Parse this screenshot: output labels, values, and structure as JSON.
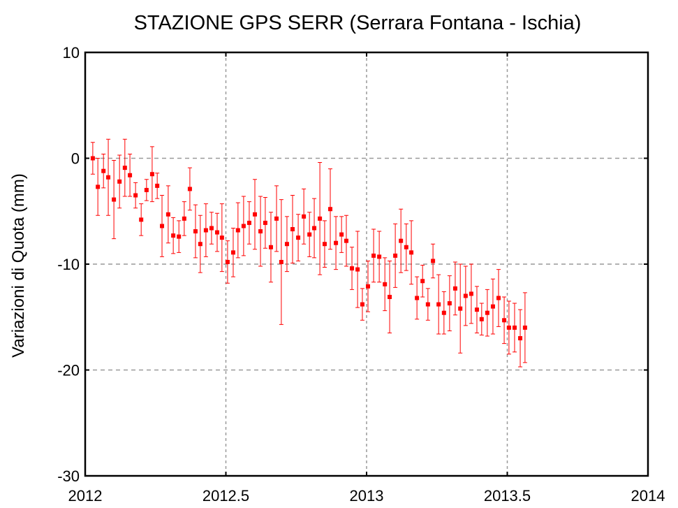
{
  "chart_data": {
    "type": "errorbar",
    "title": "STAZIONE GPS SERR (Serrara Fontana - Ischia)",
    "y_label": "Variazioni di Quota (mm)",
    "xlim": [
      2012,
      2014
    ],
    "xticks": [
      2012,
      2012.5,
      2013,
      2013.5,
      2014
    ],
    "ylim": [
      -30,
      10
    ],
    "yticks": [
      -30,
      -20,
      -10,
      0,
      10
    ],
    "grid": true,
    "series": [
      {
        "color": "#ff0000",
        "x": [
          2012.027,
          2012.045,
          2012.065,
          2012.082,
          2012.102,
          2012.122,
          2012.141,
          2012.159,
          2012.179,
          2012.199,
          2012.218,
          2012.238,
          2012.256,
          2012.273,
          2012.295,
          2012.313,
          2012.333,
          2012.352,
          2012.372,
          2012.392,
          2012.409,
          2012.429,
          2012.449,
          2012.469,
          2012.486,
          2012.506,
          2012.526,
          2012.543,
          2012.563,
          2012.583,
          2012.603,
          2012.623,
          2012.64,
          2012.66,
          2012.68,
          2012.697,
          2012.717,
          2012.737,
          2012.757,
          2012.777,
          2012.797,
          2012.814,
          2012.834,
          2012.851,
          2012.871,
          2012.891,
          2012.911,
          2012.928,
          2012.948,
          2012.968,
          2012.985,
          2013.005,
          2013.025,
          2013.045,
          2013.065,
          2013.082,
          2013.102,
          2013.122,
          2013.141,
          2013.159,
          2013.179,
          2013.199,
          2013.218,
          2013.236,
          2013.256,
          2013.275,
          2013.295,
          2013.315,
          2013.333,
          2013.352,
          2013.372,
          2013.392,
          2013.409,
          2013.429,
          2013.449,
          2013.469,
          2013.489,
          2013.506,
          2013.526,
          2013.546,
          2013.563
        ],
        "values": [
          0.0,
          -2.7,
          -1.2,
          -1.8,
          -3.9,
          -2.2,
          -0.9,
          -1.6,
          -3.5,
          -5.8,
          -3.0,
          -1.5,
          -2.6,
          -6.4,
          -5.3,
          -7.3,
          -7.4,
          -5.7,
          -2.9,
          -6.9,
          -8.1,
          -6.8,
          -6.6,
          -7.0,
          -7.5,
          -9.8,
          -8.9,
          -6.8,
          -6.4,
          -6.1,
          -5.3,
          -6.9,
          -6.1,
          -8.4,
          -5.7,
          -9.8,
          -8.1,
          -6.7,
          -7.5,
          -5.5,
          -7.2,
          -6.6,
          -5.7,
          -8.1,
          -4.8,
          -8.0,
          -7.2,
          -7.8,
          -10.4,
          -10.5,
          -13.8,
          -12.1,
          -9.2,
          -9.3,
          -11.9,
          -13.1,
          -9.2,
          -7.8,
          -8.4,
          -8.9,
          -13.2,
          -11.6,
          -13.8,
          -9.7,
          -13.8,
          -14.6,
          -13.7,
          -12.3,
          -14.2,
          -13.0,
          -12.8,
          -14.3,
          -15.2,
          -14.6,
          -14.0,
          -13.2,
          -15.3,
          -16.0,
          -16.0,
          -17.0,
          -16.0
        ],
        "errors": [
          1.5,
          2.7,
          1.6,
          3.6,
          3.7,
          2.5,
          2.7,
          2.0,
          1.2,
          1.5,
          1.0,
          2.6,
          1.2,
          2.9,
          2.7,
          1.7,
          1.5,
          1.6,
          2.0,
          2.5,
          2.7,
          2.5,
          1.5,
          1.8,
          3.2,
          2.0,
          2.3,
          2.6,
          2.8,
          2.0,
          3.3,
          3.3,
          2.4,
          3.3,
          3.1,
          5.9,
          2.6,
          3.2,
          2.2,
          2.6,
          2.1,
          2.8,
          5.3,
          2.2,
          3.8,
          2.5,
          1.7,
          2.4,
          2.0,
          3.6,
          1.5,
          2.4,
          2.5,
          2.4,
          2.5,
          3.4,
          3.0,
          3.0,
          2.2,
          3.0,
          2.0,
          1.5,
          1.5,
          1.6,
          2.8,
          2.0,
          2.6,
          2.5,
          4.2,
          2.8,
          2.8,
          2.2,
          1.5,
          2.2,
          2.6,
          2.7,
          2.2,
          2.5,
          2.3,
          2.7,
          3.3
        ]
      }
    ]
  }
}
